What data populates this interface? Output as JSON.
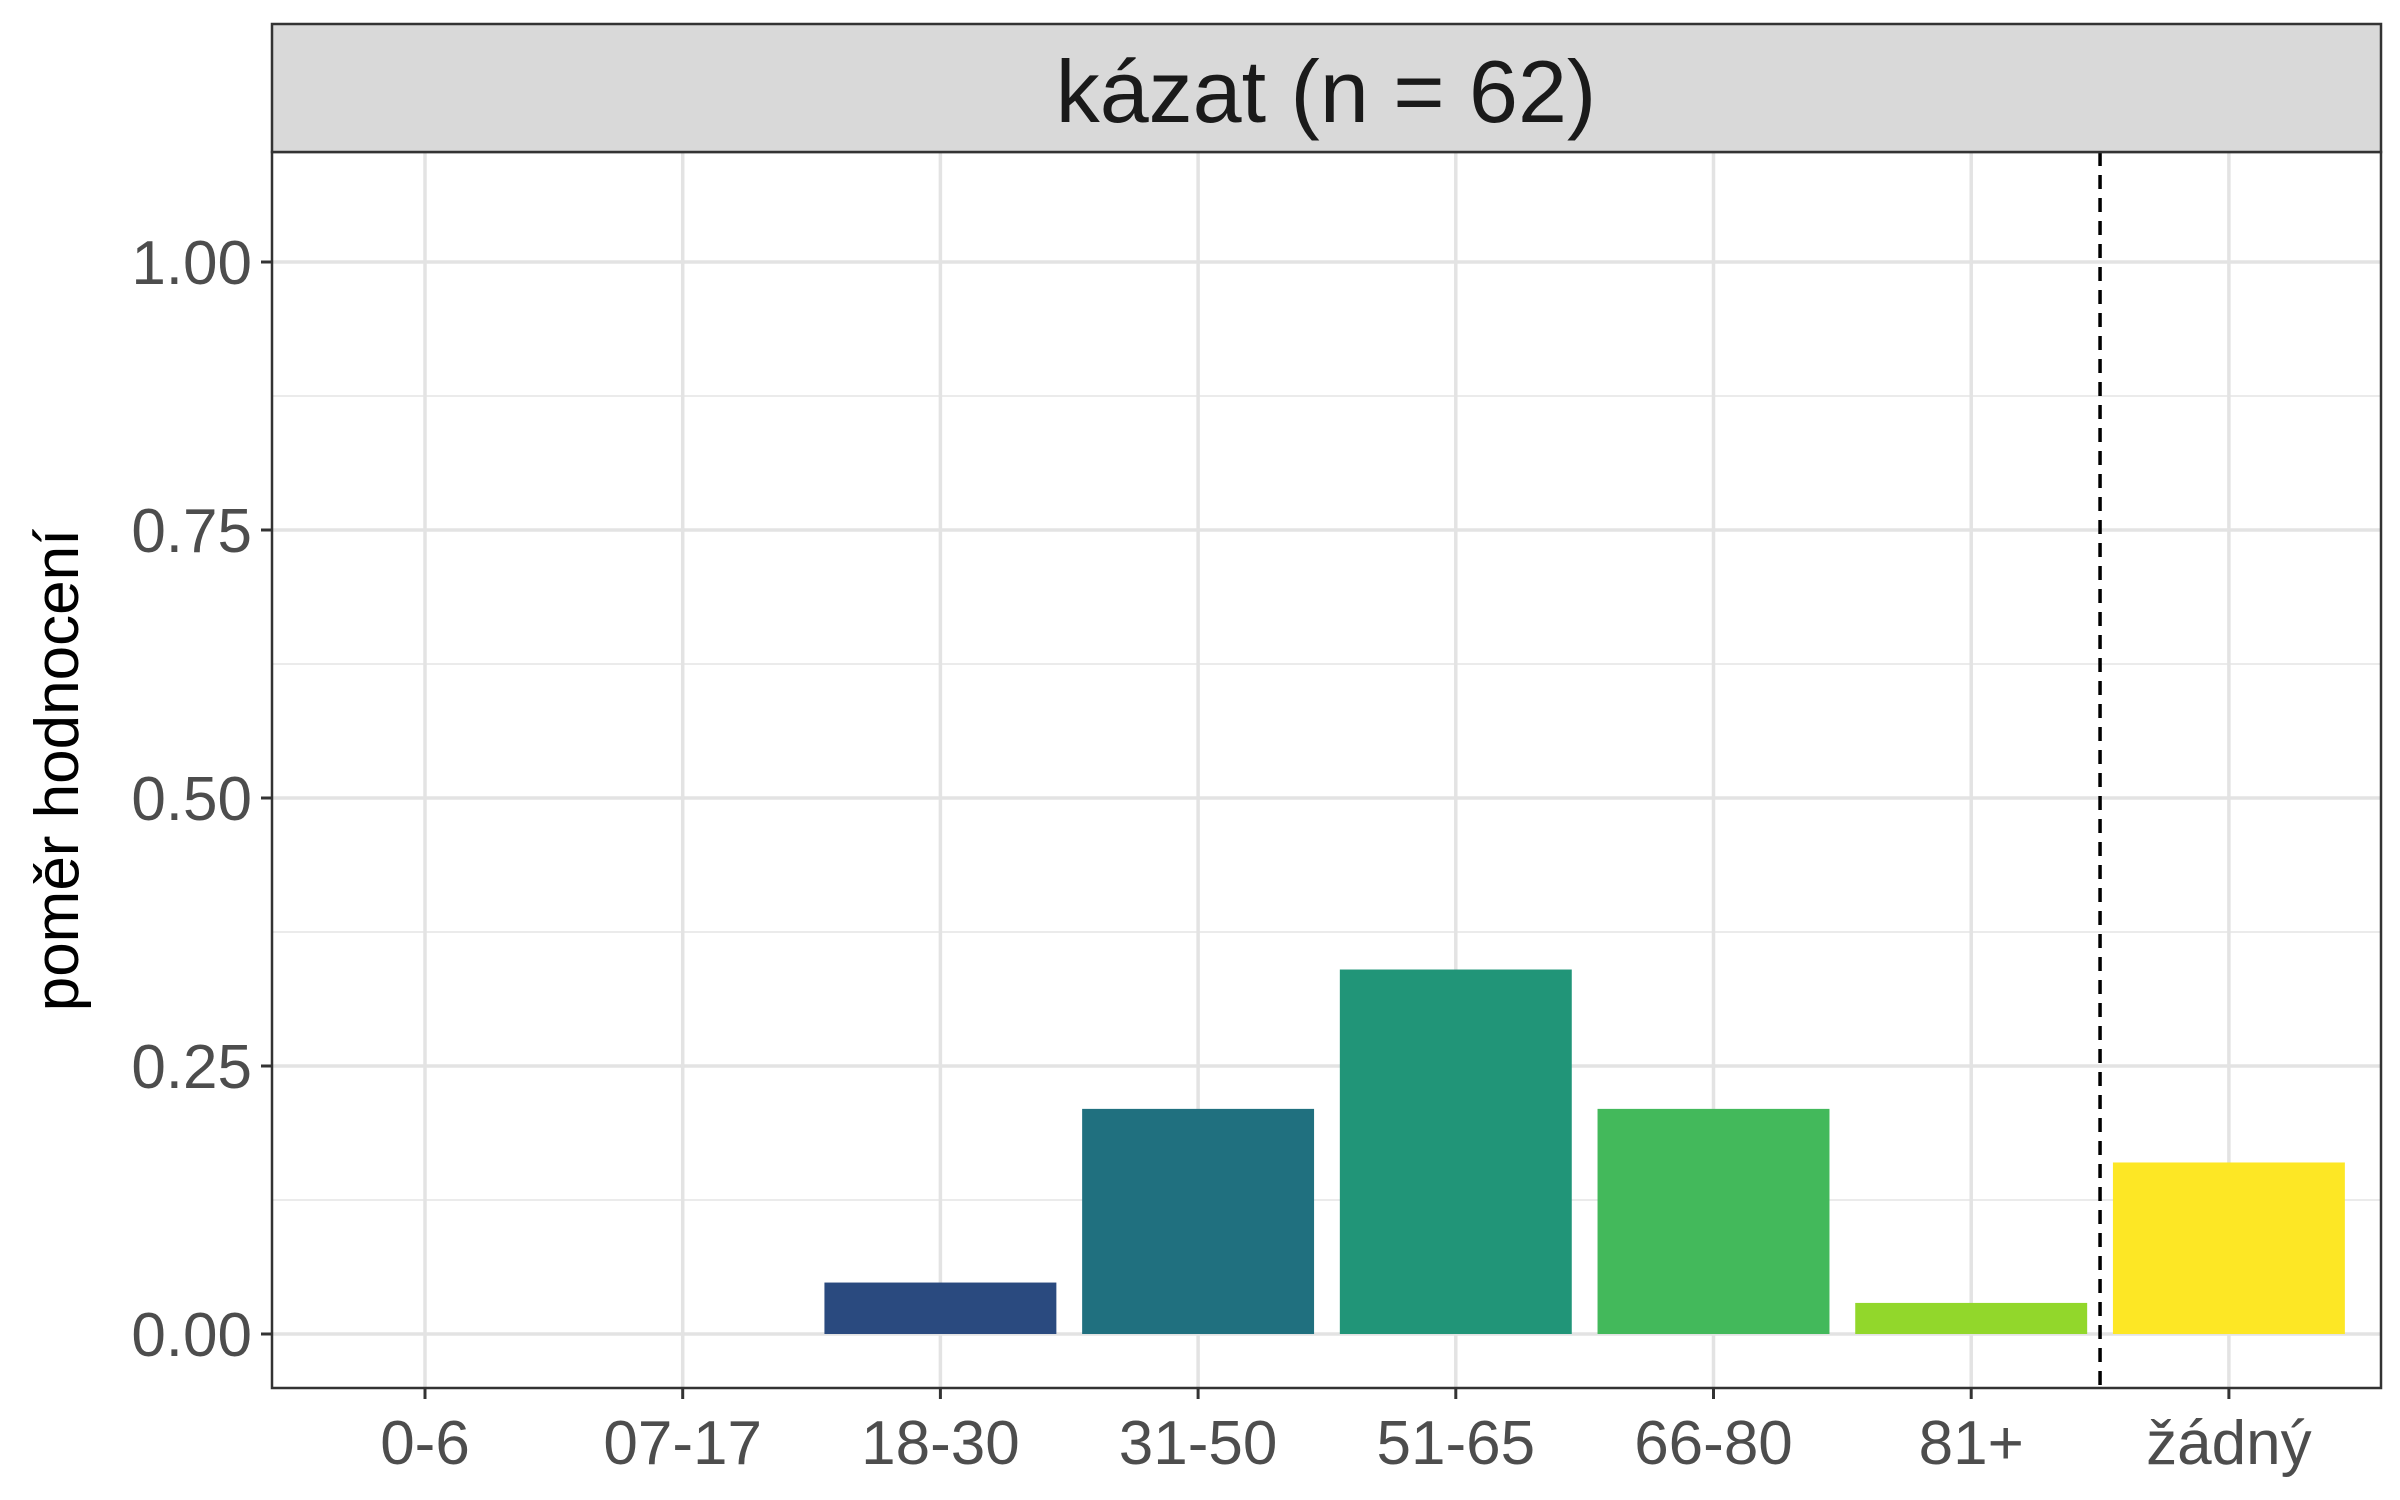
{
  "chart_data": {
    "type": "bar",
    "facet_title": "kázat (n = 62)",
    "xlabel": "",
    "ylabel": "poměr hodnocení",
    "categories": [
      "0-6",
      "07-17",
      "18-30",
      "31-50",
      "51-65",
      "66-80",
      "81+",
      "žádný"
    ],
    "values": [
      0,
      0,
      0.048,
      0.21,
      0.34,
      0.21,
      0.029,
      0.16
    ],
    "colors": [
      "#440154",
      "#46337e",
      "#2a4a7f",
      "#20707f",
      "#219578",
      "#43b95b",
      "#92d72b",
      "#fde725"
    ],
    "ylim": [
      0,
      1
    ],
    "y_ticks": [
      0,
      0.25,
      0.5,
      0.75,
      1
    ],
    "y_tick_labels": [
      "0.00",
      "0.25",
      "0.50",
      "0.75",
      "1.00"
    ],
    "reference_line": {
      "between": [
        "81+",
        "žádný"
      ],
      "style": "dashed"
    },
    "grid": true,
    "legend": "none"
  }
}
